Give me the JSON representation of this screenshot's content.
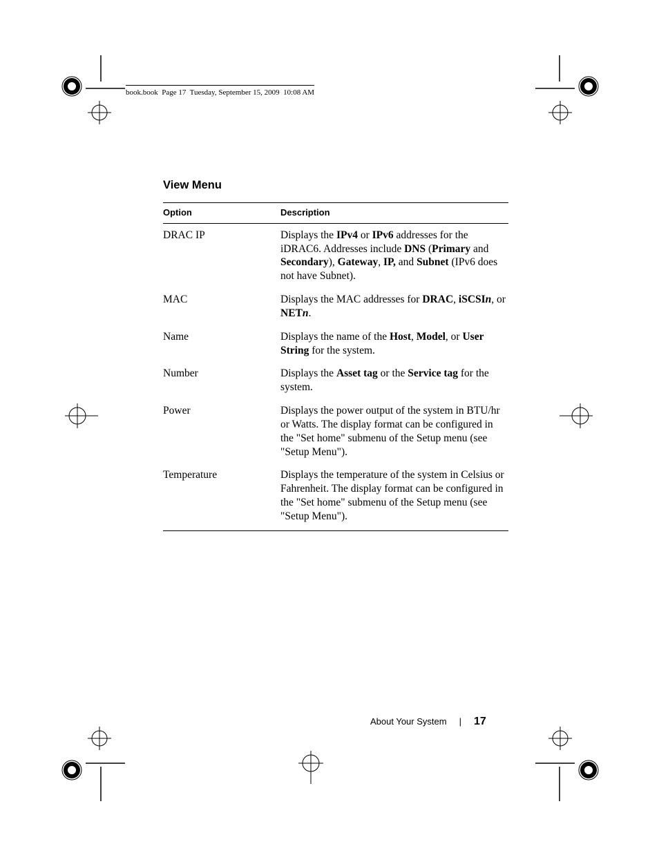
{
  "running_head": "book.book  Page 17  Tuesday, September 15, 2009  10:08 AM",
  "heading": "View Menu",
  "col_option": "Option",
  "col_description": "Description",
  "rows": [
    {
      "option": "DRAC IP",
      "desc_html": "Displays the <span class=b>IPv4</span> or <span class=b>IPv6</span> addresses for the iDRAC6. Addresses include <span class=b>DNS</span> (<span class=b>Primary</span> and <span class=b>Secondary</span>), <span class=b>Gateway</span>, <span class=b>IP,</span> and <span class=b>Subnet</span> (IPv6 does not have Subnet)."
    },
    {
      "option": "MAC",
      "desc_html": "Displays the MAC addresses for <span class=b>DRAC</span>, <span class=b>iSCSI</span><span class='b i'>n</span>, or <span class=b>NET</span><span class='b i'>n</span>."
    },
    {
      "option": "Name",
      "desc_html": "Displays the name of the <span class=b>Host</span>, <span class=b>Model</span>, or <span class=b>User String</span> for the system."
    },
    {
      "option": "Number",
      "desc_html": "Displays the <span class=b>Asset tag</span> or the <span class=b>Service tag</span> for the system."
    },
    {
      "option": "Power",
      "desc_html": "Displays the power output of the system in BTU/hr or Watts. The display format can be configured in the \"Set home\" submenu of the Setup menu (see \"Setup Menu\")."
    },
    {
      "option": "Temperature",
      "desc_html": "Displays the temperature of the system in Celsius or Fahrenheit. The display format can be configured in the \"Set home\" submenu of the Setup menu (see \"Setup Menu\")."
    }
  ],
  "footer_section": "About Your System",
  "footer_page": "17"
}
